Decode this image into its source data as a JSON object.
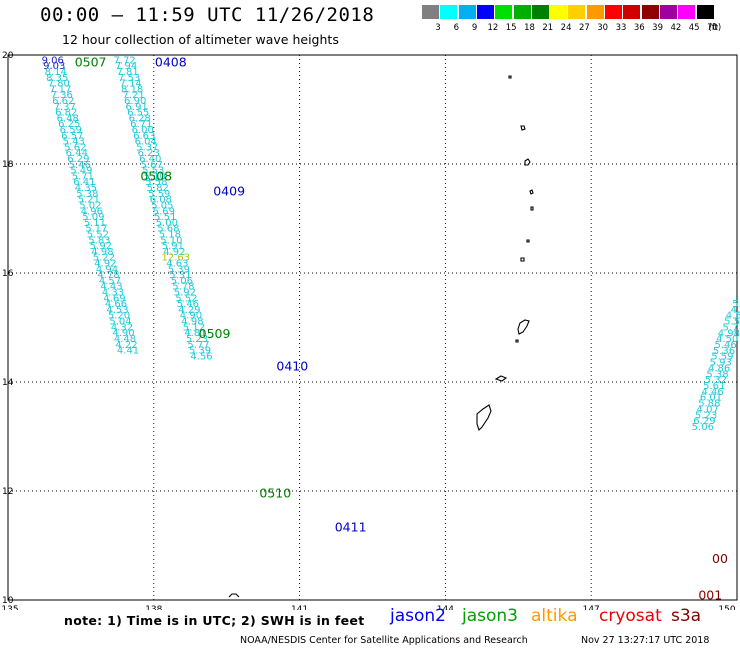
{
  "header": {
    "title": "00:00 – 11:59 UTC 11/26/2018",
    "subtitle": "12 hour collection of altimeter wave heights"
  },
  "legend": {
    "unit": "(ft)",
    "bins": [
      {
        "label": "3",
        "color": "#808080"
      },
      {
        "label": "6",
        "color": "#00ffff"
      },
      {
        "label": "9",
        "color": "#00b0f0"
      },
      {
        "label": "12",
        "color": "#0000ff"
      },
      {
        "label": "15",
        "color": "#00e000"
      },
      {
        "label": "18",
        "color": "#00b000"
      },
      {
        "label": "21",
        "color": "#008000"
      },
      {
        "label": "24",
        "color": "#ffff00"
      },
      {
        "label": "27",
        "color": "#ffd000"
      },
      {
        "label": "30",
        "color": "#ff9900"
      },
      {
        "label": "33",
        "color": "#ff0000"
      },
      {
        "label": "36",
        "color": "#d00000"
      },
      {
        "label": "39",
        "color": "#900000"
      },
      {
        "label": "42",
        "color": "#a000a0"
      },
      {
        "label": "45",
        "color": "#ff00ff"
      },
      {
        "label": "70",
        "color": "#000000"
      }
    ]
  },
  "axes": {
    "lon_ticks": [
      "135",
      "138",
      "141",
      "144",
      "147",
      "150"
    ],
    "lat_ticks": [
      "20",
      "18",
      "16",
      "14",
      "12",
      "10"
    ]
  },
  "tracks": [
    {
      "anchor": [
        135.92,
        19.92
      ],
      "step": [
        0.031,
        -0.1065
      ],
      "color": "#1ecad7",
      "first_colors": [
        "#2020c0",
        "#2020c0"
      ],
      "values": [
        "9.06",
        "9.03",
        "8.14",
        "8.35",
        "7.80",
        "7.17",
        "7.36",
        "6.62",
        "7.37",
        "6.82",
        "6.48",
        "6.25",
        "6.59",
        "6.57",
        "5.43",
        "5.62",
        "6.44",
        "6.29",
        "5.46",
        "5.49",
        "5.71",
        "6.41",
        "4.35",
        "5.38",
        "5.21",
        "5.02",
        "4.96",
        "5.09",
        "5.11",
        "5.17",
        "5.52",
        "5.83",
        "5.92",
        "4.98",
        "5.22",
        "4.92",
        "4.94",
        "4.78",
        "4.57",
        "4.43",
        "4.33",
        "4.69",
        "4.66",
        "4.53",
        "5.20",
        "5.04",
        "4.32",
        "4.90",
        "4.48",
        "4.22",
        "4.41"
      ]
    },
    {
      "anchor": [
        137.4,
        19.92
      ],
      "step": [
        0.031,
        -0.1065
      ],
      "color": "#1ecad7",
      "first_colors": [],
      "values": [
        "7.72",
        "7.94",
        "7.81",
        "7.53",
        "7.14",
        "8.18",
        "7.21",
        "6.90",
        "6.91",
        "6.55",
        "6.28",
        "6.71",
        "6.00",
        "6.63",
        "6.04",
        "5.37",
        "6.23",
        "6.40",
        "5.67",
        "5.53",
        "5.10",
        "5.58",
        "5.82",
        "5.59",
        "6.08",
        "5.05",
        "5.69",
        "5.51",
        "5.00",
        "5.68",
        "5.18",
        "5.10",
        "5.91",
        "4.92",
        "12.63",
        "4.63",
        "5.39",
        "5.31",
        "5.06",
        "5.78",
        "5.92",
        "5.52",
        "5.46",
        "4.29",
        "4.90",
        "4.98",
        "5.12",
        "4.81",
        "5.23",
        "5.77",
        "5.39",
        "4.56"
      ],
      "highlight": {
        "index": 34,
        "color": "#b8c800"
      }
    },
    {
      "anchor": [
        150.0,
        15.45
      ],
      "step": [
        -0.0335,
        -0.1075
      ],
      "color": "#1ecad7",
      "first_colors": [],
      "values": [
        "5.",
        "4.",
        "4.8",
        "5.5",
        "5.7",
        "4.98",
        "4.50",
        "5.46",
        "5.36",
        "5.59",
        "5.93",
        "4.86",
        "5.38",
        "5.32",
        "5.61",
        "4.46",
        "6.01",
        "5.88",
        "4.07",
        "5.23",
        "6.29",
        "5.06"
      ]
    }
  ],
  "track_labels": [
    {
      "text": "0507",
      "lon": 136.7,
      "lat": 19.88,
      "color": "#008000"
    },
    {
      "text": "0408",
      "lon": 138.35,
      "lat": 19.88,
      "color": "#0000cc"
    },
    {
      "text": "0508",
      "lon": 138.05,
      "lat": 17.79,
      "color": "#008000"
    },
    {
      "text": "0409",
      "lon": 139.55,
      "lat": 17.51,
      "color": "#0000cc"
    },
    {
      "text": "0509",
      "lon": 139.25,
      "lat": 14.9,
      "color": "#008000"
    },
    {
      "text": "0410",
      "lon": 140.85,
      "lat": 14.3,
      "color": "#0000cc"
    },
    {
      "text": "0510",
      "lon": 140.5,
      "lat": 11.97,
      "color": "#008000"
    },
    {
      "text": "0411",
      "lon": 142.05,
      "lat": 11.35,
      "color": "#0000cc"
    },
    {
      "text": "00",
      "lon": 149.65,
      "lat": 10.77,
      "color": "#8b0000"
    },
    {
      "text": "001",
      "lon": 149.45,
      "lat": 10.1,
      "color": "#8b0000"
    }
  ],
  "note": "note: 1) Time is in UTC; 2) SWH is in feet",
  "satellites": [
    {
      "name": "jason2",
      "color": "#0000ee"
    },
    {
      "name": "jason3",
      "color": "#00a000"
    },
    {
      "name": "altika",
      "color": "#ff9900"
    },
    {
      "name": "cryosat",
      "color": "#ee0000"
    },
    {
      "name": "s3a",
      "color": "#8b0000"
    }
  ],
  "credit": "NOAA/NESDIS Center for Satellite Applications and Research",
  "timestamp": "Nov 27 13:27:17 UTC 2018"
}
